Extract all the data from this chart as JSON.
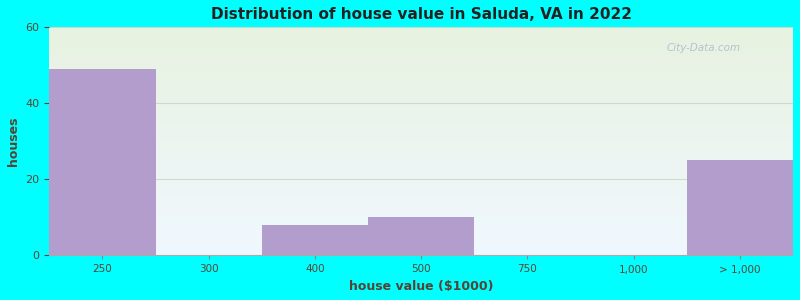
{
  "title": "Distribution of house value in Saluda, VA in 2022",
  "xlabel": "house value ($1000)",
  "ylabel": "houses",
  "background_color": "#00ffff",
  "bar_color": "#b39dcc",
  "grid_color": "#d0d8c8",
  "title_color": "#222222",
  "label_color": "#554433",
  "tick_label_color": "#554433",
  "ylim": [
    0,
    60
  ],
  "yticks": [
    0,
    20,
    40,
    60
  ],
  "bar_heights": [
    49,
    0,
    8,
    10,
    0,
    0,
    25
  ],
  "xtick_labels": [
    "250",
    "300",
    "400",
    "500",
    "750",
    "1,000",
    "> 1,000"
  ],
  "watermark": "City-Data.com",
  "bg_gradient_top": "#e8f2e0",
  "bg_gradient_bottom": "#f0f8ff"
}
